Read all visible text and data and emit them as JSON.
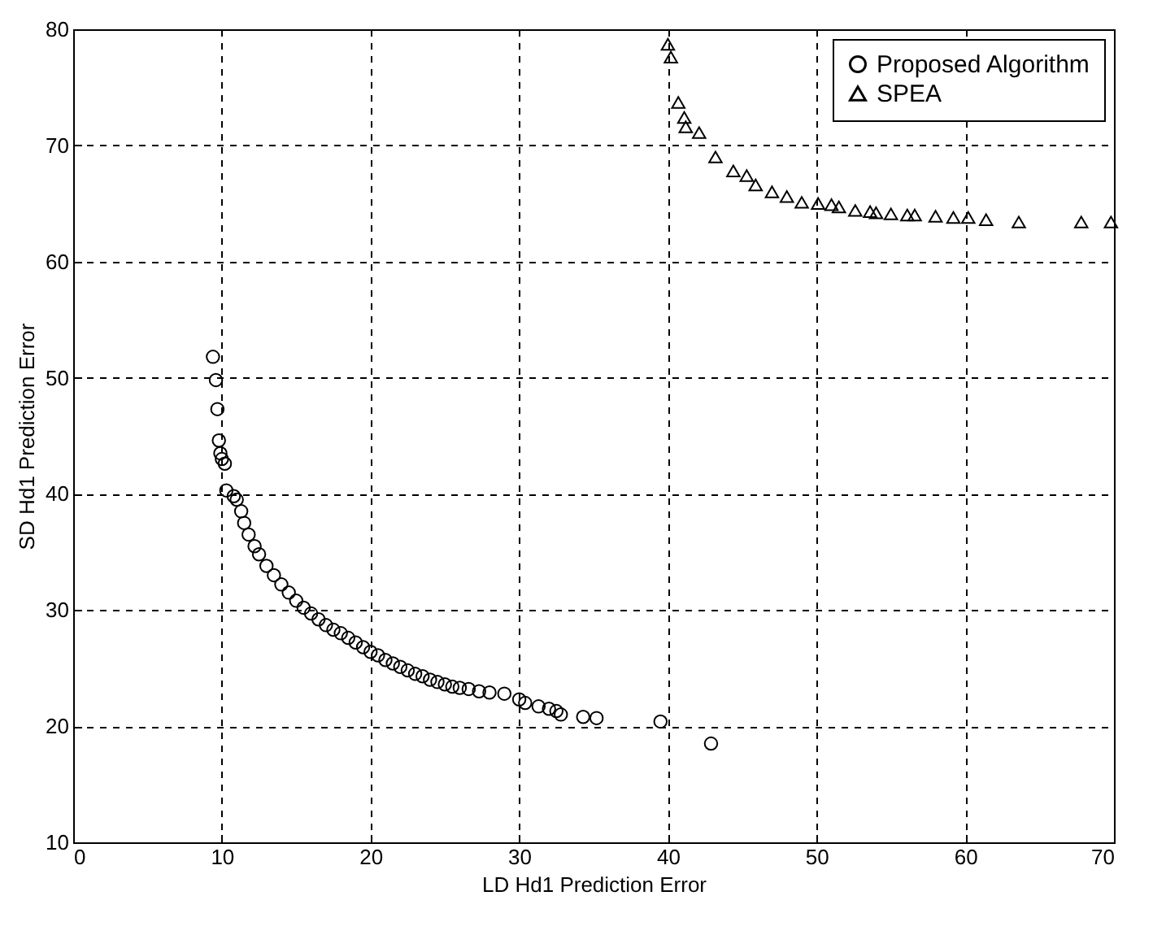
{
  "chart_data": {
    "type": "scatter",
    "xlabel": "LD Hd1 Prediction Error",
    "ylabel": "SD Hd1 Prediction Error",
    "xlim": [
      0,
      70
    ],
    "xticks": [
      0,
      10,
      20,
      30,
      40,
      50,
      60,
      70
    ],
    "ylim": [
      10,
      80
    ],
    "yticks": [
      10,
      20,
      30,
      40,
      50,
      60,
      70,
      80
    ],
    "grid": true,
    "legend": "top right",
    "series": [
      {
        "name": "Proposed Algorithm",
        "color": "#000000",
        "marker": "circle",
        "x": [
          9.4,
          9.6,
          9.7,
          9.8,
          9.9,
          10.0,
          10.2,
          10.3,
          10.8,
          11.0,
          11.3,
          11.5,
          11.8,
          12.2,
          12.5,
          13.0,
          13.5,
          14.0,
          14.5,
          15.0,
          15.5,
          16.0,
          16.5,
          17.0,
          17.5,
          18.0,
          18.5,
          19.0,
          19.5,
          20.0,
          20.5,
          21.0,
          21.5,
          22.0,
          22.5,
          23.0,
          23.5,
          24.0,
          24.5,
          25.0,
          25.5,
          26.0,
          26.6,
          27.3,
          28.0,
          29.0,
          30.0,
          30.4,
          31.3,
          32.0,
          32.5,
          32.8,
          34.3,
          35.2,
          39.5,
          42.9
        ],
        "values": [
          51.8,
          49.8,
          47.3,
          44.6,
          43.5,
          43.0,
          42.6,
          40.3,
          39.8,
          39.5,
          38.5,
          37.5,
          36.5,
          35.5,
          34.8,
          33.8,
          33.0,
          32.2,
          31.5,
          30.8,
          30.2,
          29.7,
          29.2,
          28.7,
          28.3,
          28.0,
          27.6,
          27.2,
          26.8,
          26.4,
          26.1,
          25.7,
          25.4,
          25.1,
          24.8,
          24.5,
          24.3,
          24.0,
          23.8,
          23.6,
          23.4,
          23.3,
          23.2,
          23.0,
          22.9,
          22.8,
          22.3,
          22.0,
          21.7,
          21.5,
          21.3,
          21.0,
          20.8,
          20.7,
          20.4,
          18.5
        ]
      },
      {
        "name": "SPEA",
        "color": "#000000",
        "marker": "triangle",
        "x": [
          40.0,
          40.2,
          40.7,
          41.1,
          41.2,
          42.1,
          43.2,
          44.4,
          45.3,
          45.9,
          47.0,
          48.0,
          49.0,
          50.1,
          51.0,
          51.5,
          52.6,
          53.6,
          54.0,
          55.0,
          56.1,
          56.6,
          58.0,
          59.2,
          60.2,
          61.4,
          63.6,
          67.8,
          69.8
        ],
        "values": [
          78.7,
          77.6,
          73.7,
          72.4,
          71.6,
          71.1,
          69.0,
          67.8,
          67.4,
          66.6,
          66.0,
          65.6,
          65.1,
          65.0,
          64.9,
          64.7,
          64.4,
          64.3,
          64.2,
          64.1,
          64.0,
          64.0,
          63.9,
          63.8,
          63.8,
          63.6,
          63.4,
          63.4,
          63.4
        ]
      }
    ]
  }
}
